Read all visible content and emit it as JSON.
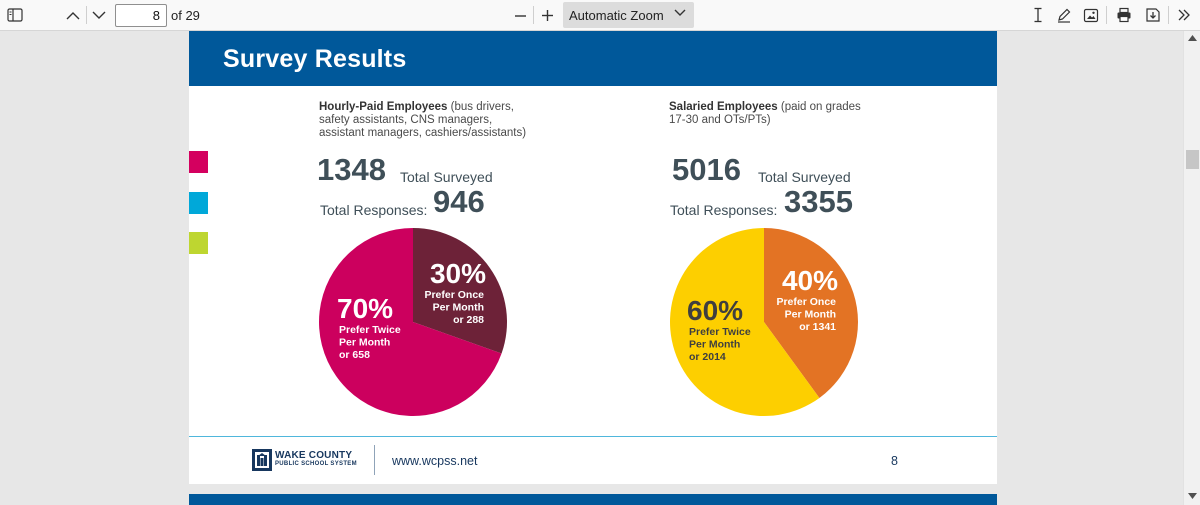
{
  "toolbar": {
    "current_page": "8",
    "page_count_label": "of 29",
    "zoom_label": "Automatic Zoom",
    "icons": [
      "sidebar-toggle-icon",
      "previous-page-icon",
      "next-page-icon",
      "zoom-out-icon",
      "zoom-in-icon",
      "text-select-icon",
      "draw-icon",
      "add-image-icon",
      "print-icon",
      "save-icon",
      "more-tools-icon"
    ]
  },
  "document": {
    "title": "Survey Results",
    "legend_colors": [
      "#d4005f",
      "#00a8d9",
      "#bed630"
    ],
    "hourly": {
      "heading": "Hourly-Paid Employees",
      "detail_1": "(bus drivers,",
      "detail_2": "safety assistants, CNS managers,",
      "detail_3": "assistant managers, cashiers/assistants)",
      "total_surveyed": "1348",
      "total_surveyed_label": "Total Surveyed",
      "total_responses_label": "Total Responses:",
      "total_responses": "946"
    },
    "salaried": {
      "heading": "Salaried Employees",
      "detail_1": "(paid on grades",
      "detail_2": "17-30 and OTs/PTs)",
      "total_surveyed": "5016",
      "total_surveyed_label": "Total Surveyed",
      "total_responses_label": "Total Responses:",
      "total_responses": "3355"
    },
    "footer": {
      "logo_line1": "WAKE COUNTY",
      "logo_line2": "PUBLIC SCHOOL SYSTEM",
      "url": "www.wcpss.net",
      "page_number": "8"
    }
  },
  "chart_data": [
    {
      "type": "pie",
      "title": "Hourly-Paid Employees",
      "slices": [
        {
          "name": "Prefer Twice Per Month",
          "value": 658,
          "percent_label": "70%",
          "line1": "Prefer Twice",
          "line2": "Per Month",
          "line3": "or 658",
          "color": "#cc005e"
        },
        {
          "name": "Prefer Once Per Month",
          "value": 288,
          "percent_label": "30%",
          "line1": "Prefer Once",
          "line2": "Per Month",
          "line3": "or 288",
          "color": "#6d2238"
        }
      ]
    },
    {
      "type": "pie",
      "title": "Salaried Employees",
      "slices": [
        {
          "name": "Prefer Twice Per Month",
          "value": 2014,
          "percent_label": "60%",
          "line1": "Prefer Twice",
          "line2": "Per Month",
          "line3": "or 2014",
          "color": "#fdcf00"
        },
        {
          "name": "Prefer Once Per Month",
          "value": 1341,
          "percent_label": "40%",
          "line1": "Prefer Once",
          "line2": "Per Month",
          "line3": "or 1341",
          "color": "#e37324"
        }
      ]
    }
  ]
}
